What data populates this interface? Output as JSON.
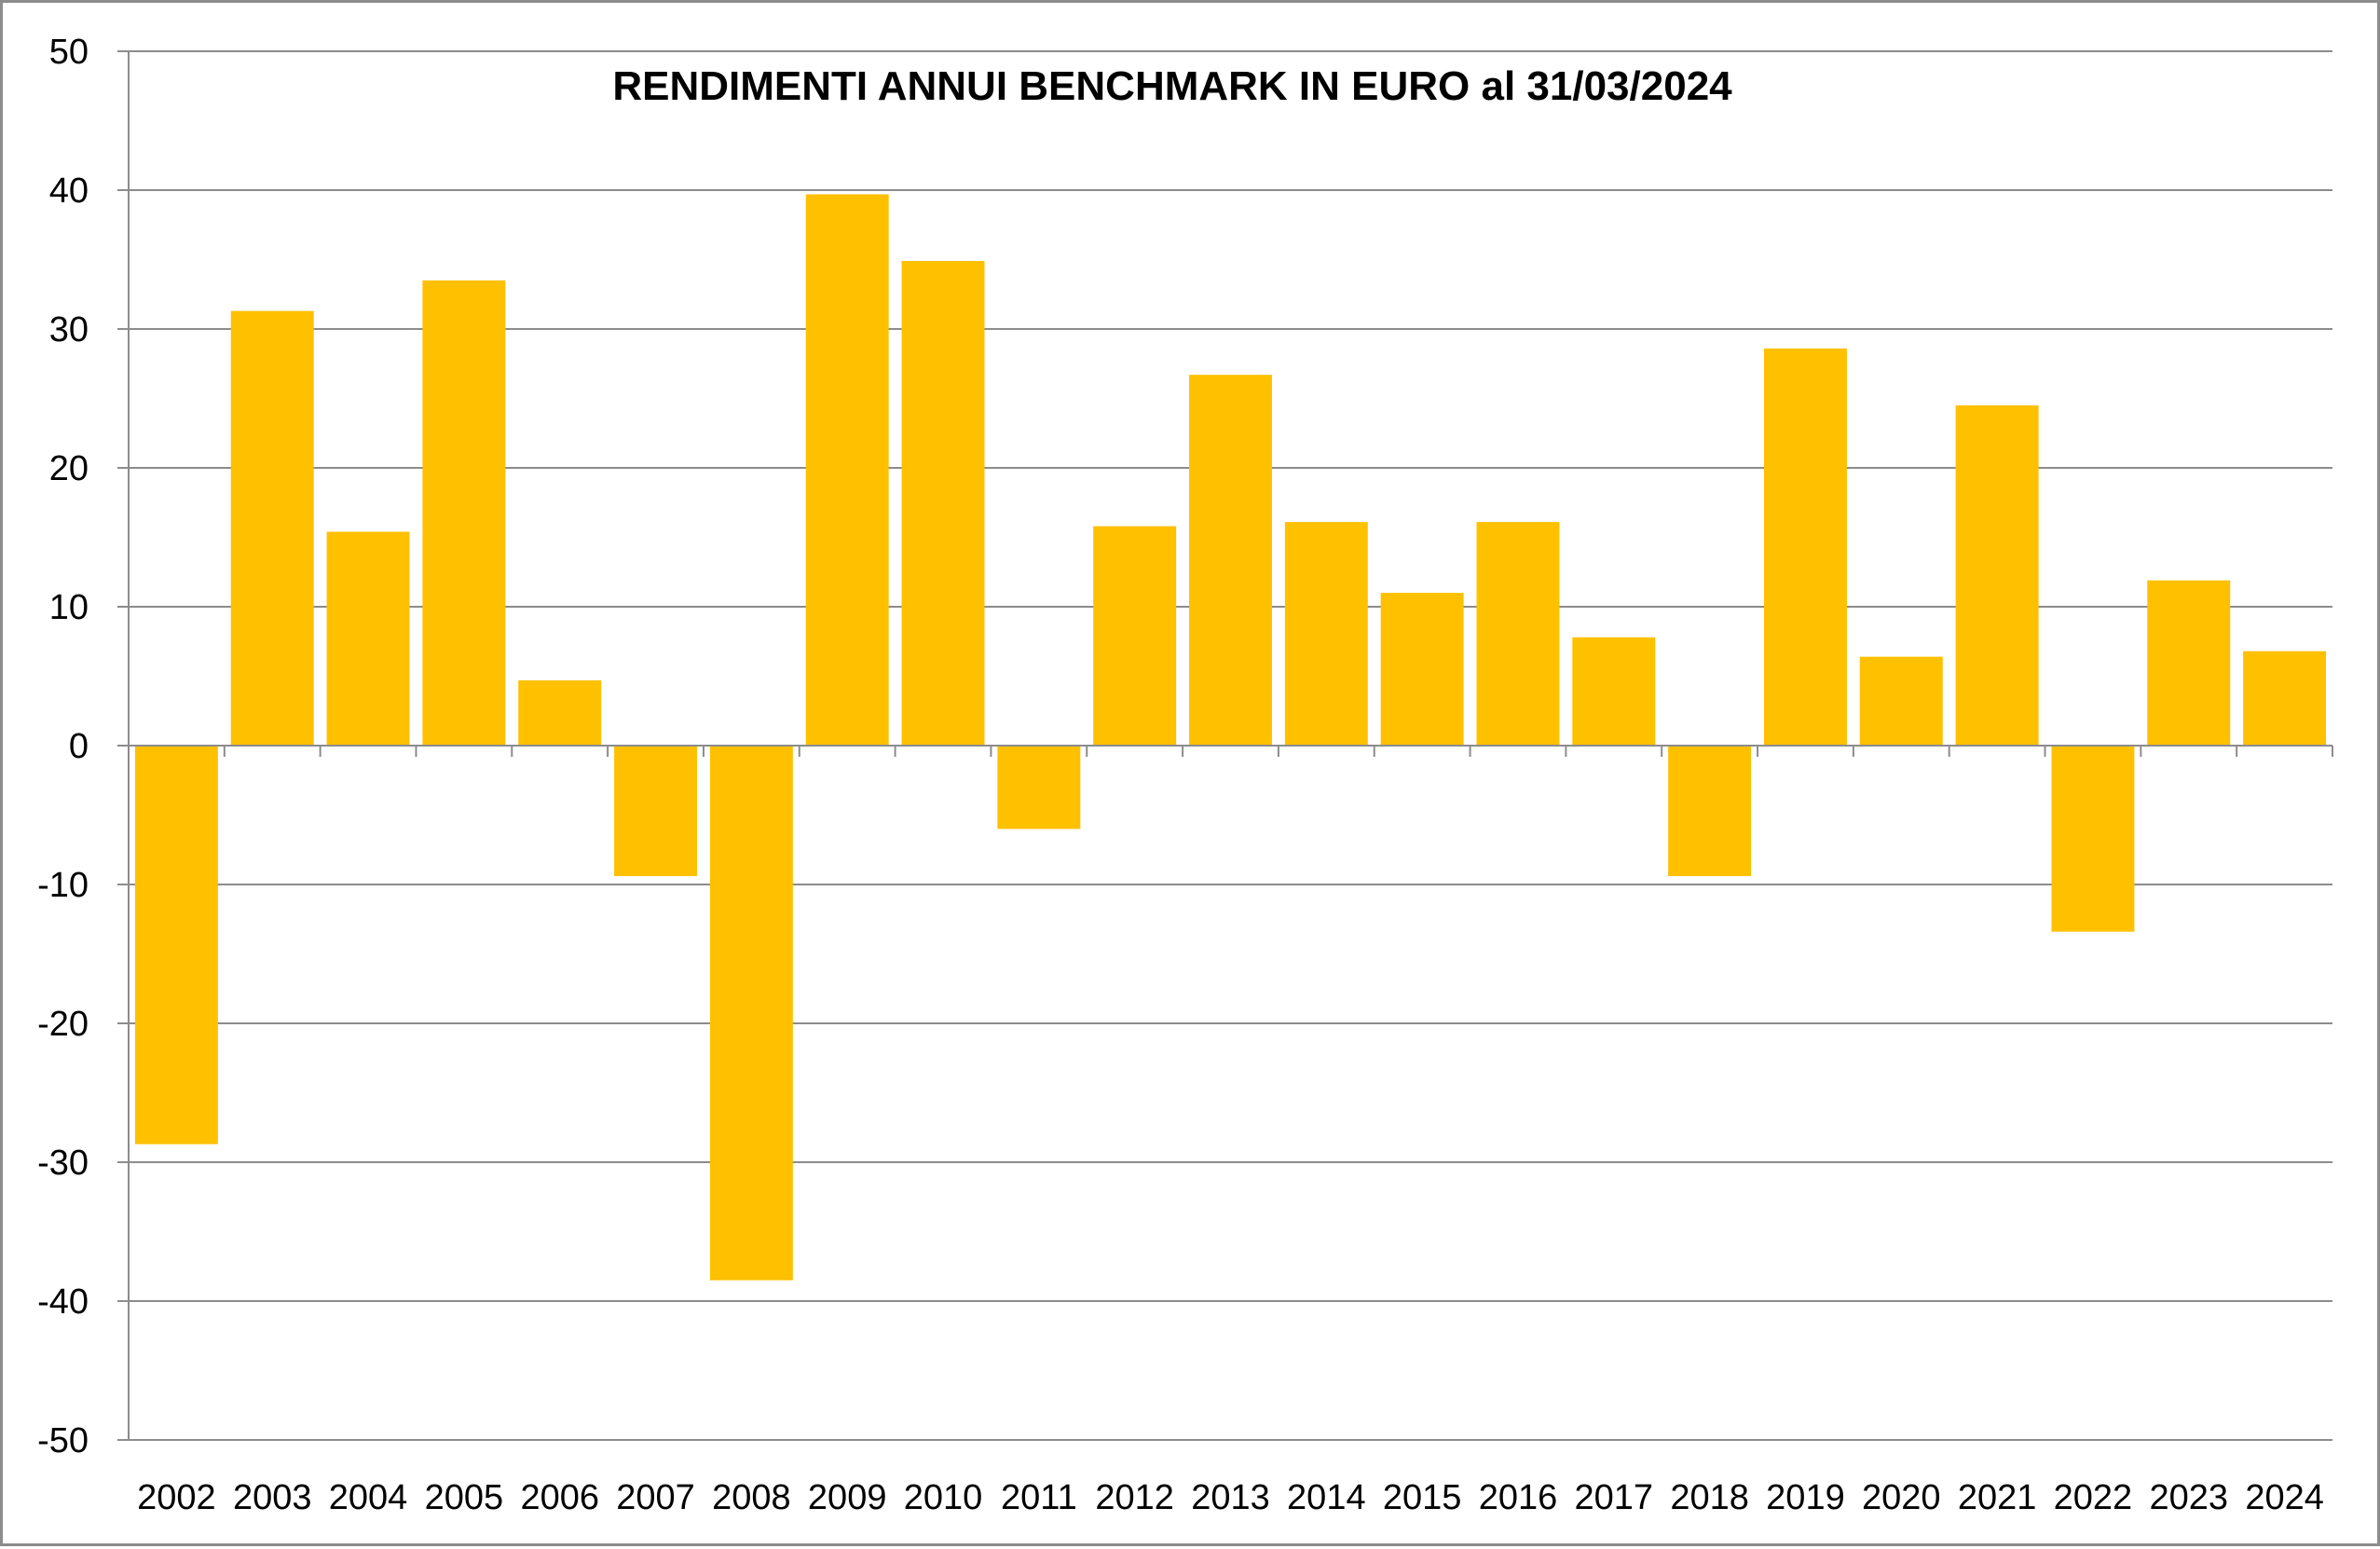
{
  "chart_data": {
    "type": "bar",
    "title": "RENDIMENTI ANNUI BENCHMARK IN EURO al 31/03/2024",
    "xlabel": "",
    "ylabel": "",
    "ylim": [
      -50,
      50
    ],
    "y_ticks": [
      "50",
      "40",
      "30",
      "20",
      "10",
      "0",
      "-10",
      "-20",
      "-30",
      "-40",
      "-50"
    ],
    "grid": true,
    "legend": "none",
    "bar_color": "#FFC000",
    "categories": [
      "2002",
      "2003",
      "2004",
      "2005",
      "2006",
      "2007",
      "2008",
      "2009",
      "2010",
      "2011",
      "2012",
      "2013",
      "2014",
      "2015",
      "2016",
      "2017",
      "2018",
      "2019",
      "2020",
      "2021",
      "2022",
      "2023",
      "2024"
    ],
    "values": [
      -28.7,
      31.3,
      15.4,
      33.5,
      4.7,
      -9.4,
      -38.5,
      39.7,
      34.9,
      -6.0,
      15.8,
      26.7,
      16.1,
      11.0,
      16.1,
      7.8,
      -9.4,
      28.6,
      6.4,
      24.5,
      -13.4,
      11.9,
      6.8
    ]
  }
}
